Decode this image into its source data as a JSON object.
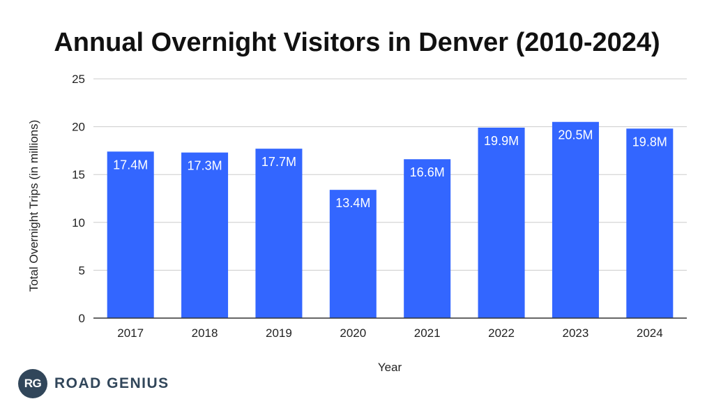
{
  "chart_data": {
    "type": "bar",
    "title": "Annual Overnight Visitors in Denver (2010-2024)",
    "xlabel": "Year",
    "ylabel": "Total Overnight Trips (in millions)",
    "categories": [
      "2017",
      "2018",
      "2019",
      "2020",
      "2021",
      "2022",
      "2023",
      "2024"
    ],
    "values": [
      17.4,
      17.3,
      17.7,
      13.4,
      16.6,
      19.9,
      20.5,
      19.8
    ],
    "data_labels": [
      "17.4M",
      "17.3M",
      "17.7M",
      "13.4M",
      "16.6M",
      "19.9M",
      "20.5M",
      "19.8M"
    ],
    "ylim": [
      0,
      25
    ],
    "yticks": [
      0,
      5,
      10,
      15,
      20,
      25
    ],
    "grid": true,
    "bar_color": "#3366ff"
  },
  "logo": {
    "initials": "RG",
    "text": "ROAD GENIUS"
  }
}
